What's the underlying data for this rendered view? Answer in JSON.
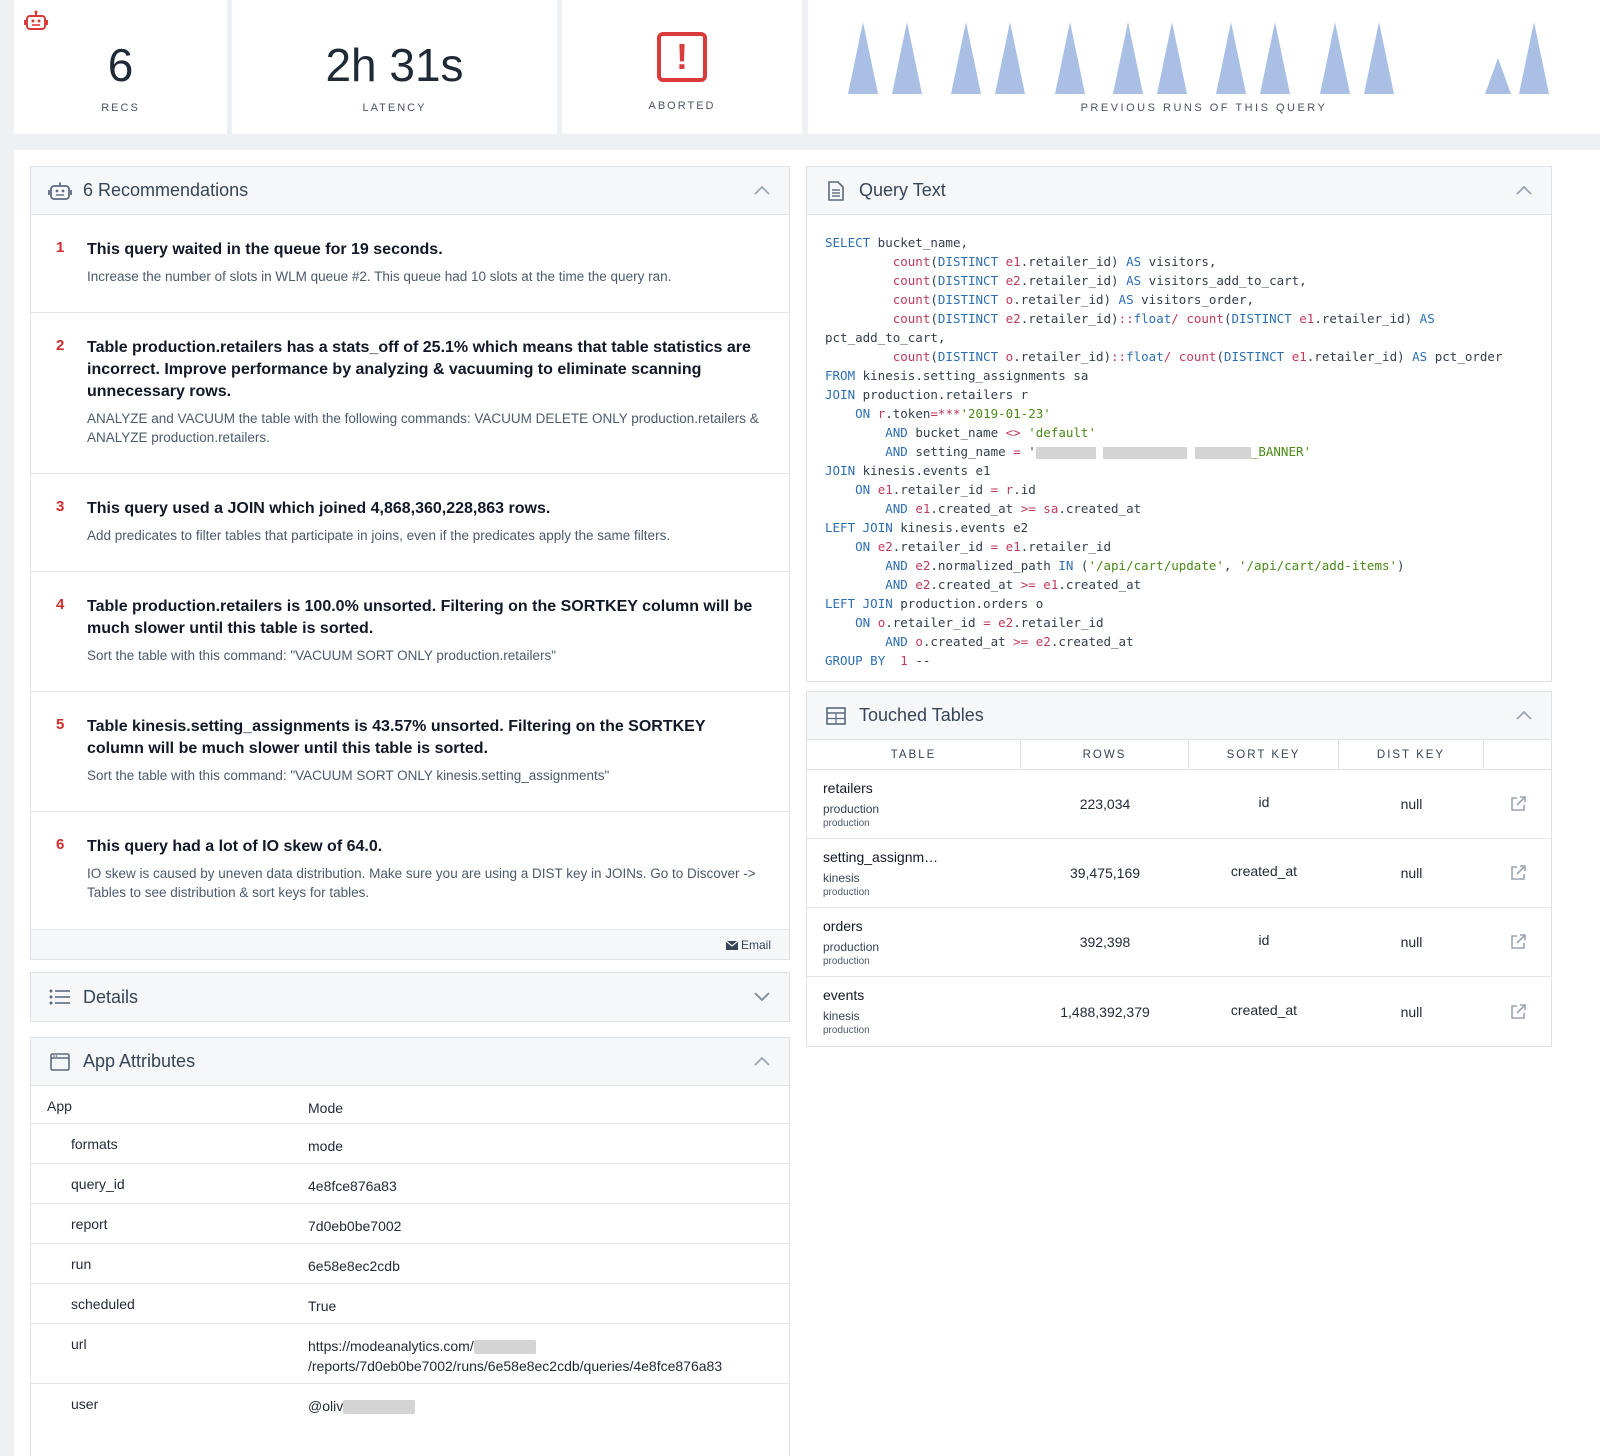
{
  "stats": {
    "recs": {
      "value": "6",
      "label": "RECS"
    },
    "latency": {
      "value": "2h 31s",
      "label": "LATENCY"
    },
    "aborted": {
      "symbol": "!",
      "label": "ABORTED"
    },
    "previous_runs": {
      "label": "PREVIOUS RUNS OF THIS QUERY",
      "run_values": [
        1,
        1,
        1,
        1,
        1,
        1,
        1,
        1,
        1,
        1,
        1,
        0.5,
        1
      ],
      "color": "#a9c0e4"
    }
  },
  "recommendations": {
    "title": "6 Recommendations",
    "items": [
      {
        "num": "1",
        "title": "This query waited in the queue for 19 seconds.",
        "body": "Increase the number of slots in WLM queue #2. This queue had 10 slots at the time the query ran."
      },
      {
        "num": "2",
        "title": "Table production.retailers has a stats_off of 25.1% which means that table statistics are incorrect. Improve performance by analyzing & vacuuming to eliminate scanning unnecessary rows.",
        "body": "ANALYZE and VACUUM the table with the following commands: VACUUM DELETE ONLY production.retailers & ANALYZE production.retailers."
      },
      {
        "num": "3",
        "title": "This query used a JOIN which joined 4,868,360,228,863 rows.",
        "body": "Add predicates to filter tables that participate in joins, even if the predicates apply the same filters."
      },
      {
        "num": "4",
        "title": "Table production.retailers is 100.0% unsorted. Filtering on the SORTKEY column will be much slower until this table is sorted.",
        "body": "Sort the table with this command: \"VACUUM SORT ONLY production.retailers\""
      },
      {
        "num": "5",
        "title": "Table kinesis.setting_assignments is 43.57% unsorted. Filtering on the SORTKEY column will be much slower until this table is sorted.",
        "body": "Sort the table with this command: \"VACUUM SORT ONLY kinesis.setting_assignments\""
      },
      {
        "num": "6",
        "title": "This query had a lot of IO skew of 64.0.",
        "body": "IO skew is caused by uneven data distribution. Make sure you are using a DIST key in JOINs. Go to Discover -> Tables to see distribution & sort keys for tables."
      }
    ],
    "email_label": "Email"
  },
  "details": {
    "title": "Details"
  },
  "app_attributes": {
    "title": "App Attributes",
    "app_label": "App",
    "app_value": "Mode",
    "rows": [
      {
        "key": "formats",
        "value": "mode"
      },
      {
        "key": "query_id",
        "value": "4e8fce876a83"
      },
      {
        "key": "report",
        "value": "7d0eb0be7002"
      },
      {
        "key": "run",
        "value": "6e58e8ec2cdb"
      },
      {
        "key": "scheduled",
        "value": "True"
      }
    ],
    "url_key": "url",
    "url_prefix": "https://modeanalytics.com/",
    "url_suffix": "/reports/7d0eb0be7002/runs/6e58e8ec2cdb/queries/4e8fce876a83",
    "user_key": "user",
    "user_prefix": "@oliv"
  },
  "query_text": {
    "title": "Query Text",
    "lines": [
      "SELECT bucket_name,",
      "         count(DISTINCT e1.retailer_id) AS visitors,",
      "         count(DISTINCT e2.retailer_id) AS visitors_add_to_cart,",
      "         count(DISTINCT o.retailer_id) AS visitors_order,",
      "         count(DISTINCT e2.retailer_id)::float/ count(DISTINCT e1.retailer_id) AS",
      "pct_add_to_cart,",
      "         count(DISTINCT o.retailer_id)::float/ count(DISTINCT e1.retailer_id) AS pct_order",
      "FROM kinesis.setting_assignments sa",
      "JOIN production.retailers r",
      "    ON r.token=***'2019-01-23'",
      "        AND bucket_name <> 'default'",
      "        AND setting_name = '",
      "JOIN kinesis.events e1",
      "    ON e1.retailer_id = r.id",
      "        AND e1.created_at >= sa.created_at",
      "LEFT JOIN kinesis.events e2",
      "    ON e2.retailer_id = e1.retailer_id",
      "        AND e2.normalized_path IN ('/api/cart/update', '/api/cart/add-items')",
      "        AND e2.created_at >= e1.created_at",
      "LEFT JOIN production.orders o",
      "    ON o.retailer_id = e2.retailer_id",
      "        AND o.created_at >= e2.created_at",
      "GROUP BY  1 --"
    ],
    "banner_suffix": "_BANNER'"
  },
  "touched_tables": {
    "title": "Touched Tables",
    "headers": [
      "TABLE",
      "ROWS",
      "SORT KEY",
      "DIST KEY"
    ],
    "rows": [
      {
        "name": "retailers",
        "schema": "production",
        "db": "production",
        "rows": "223,034",
        "sort_key": "id",
        "dist_key": "null"
      },
      {
        "name": "setting_assignm…",
        "schema": "kinesis",
        "db": "production",
        "rows": "39,475,169",
        "sort_key": "created_at",
        "dist_key": "null"
      },
      {
        "name": "orders",
        "schema": "production",
        "db": "production",
        "rows": "392,398",
        "sort_key": "id",
        "dist_key": "null"
      },
      {
        "name": "events",
        "schema": "kinesis",
        "db": "production",
        "rows": "1,488,392,379",
        "sort_key": "created_at",
        "dist_key": "null"
      }
    ]
  },
  "colors": {
    "accent_red": "#d12b2b",
    "run_bar": "#a9c0e4",
    "header_bg": "#f5f7f9"
  }
}
